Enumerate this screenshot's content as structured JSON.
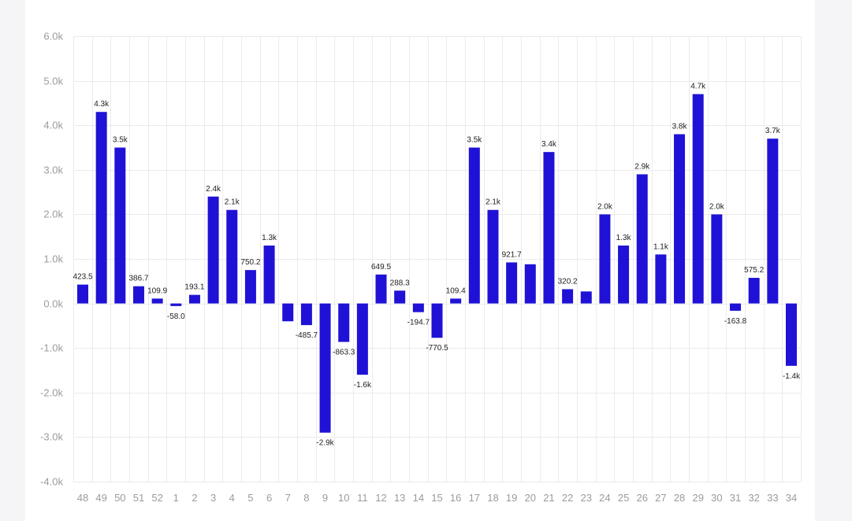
{
  "colors": {
    "bar": "#1f12d6",
    "grid": "#ebebeb",
    "axis_text": "#9b9b9b",
    "label_text": "#222222"
  },
  "chart_data": {
    "type": "bar",
    "title": "",
    "xlabel": "",
    "ylabel": "",
    "ylim": [
      -4000,
      6000
    ],
    "yticks": [
      6000,
      5000,
      4000,
      3000,
      2000,
      1000,
      0,
      -1000,
      -2000,
      -3000,
      -4000
    ],
    "ytick_labels": [
      "6.0k",
      "5.0k",
      "4.0k",
      "3.0k",
      "2.0k",
      "1.0k",
      "0.0k",
      "-1.0k",
      "-2.0k",
      "-3.0k",
      "-4.0k"
    ],
    "grid": true,
    "legend": "none",
    "categories": [
      "48",
      "49",
      "50",
      "51",
      "52",
      "1",
      "2",
      "3",
      "4",
      "5",
      "6",
      "7",
      "8",
      "9",
      "10",
      "11",
      "12",
      "13",
      "14",
      "15",
      "16",
      "17",
      "18",
      "19",
      "20",
      "21",
      "22",
      "23",
      "24",
      "25",
      "26",
      "27",
      "28",
      "29",
      "30",
      "31",
      "32",
      "33",
      "34"
    ],
    "values": [
      423.5,
      4300,
      3500,
      386.7,
      109.9,
      -58.0,
      193.1,
      2400,
      2100,
      750.2,
      1300,
      -400,
      -485.7,
      -2900,
      -863.3,
      -1600,
      649.5,
      288.3,
      -194.7,
      -770.5,
      109.4,
      3500,
      2100,
      921.7,
      880,
      3400,
      320.2,
      270,
      2000,
      1300,
      2900,
      1100,
      3800,
      4700,
      2000,
      -163.8,
      575.2,
      3700,
      -1400
    ],
    "data_labels": [
      "423.5",
      "4.3k",
      "3.5k",
      "386.7",
      "109.9",
      "-58.0",
      "193.1",
      "2.4k",
      "2.1k",
      "750.2",
      "1.3k",
      "",
      "-485.7",
      "-2.9k",
      "-863.3",
      "-1.6k",
      "649.5",
      "288.3",
      "-194.7",
      "-770.5",
      "109.4",
      "3.5k",
      "2.1k",
      "921.7",
      "",
      "3.4k",
      "320.2",
      "",
      "2.0k",
      "1.3k",
      "2.9k",
      "1.1k",
      "3.8k",
      "4.7k",
      "2.0k",
      "-163.8",
      "575.2",
      "3.7k",
      "-1.4k"
    ]
  }
}
